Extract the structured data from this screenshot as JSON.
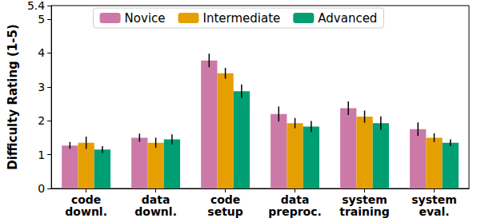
{
  "chart_data": {
    "type": "bar",
    "y_label": "Difficulty Rating (1-5)",
    "categories": [
      "code\ndownl.",
      "data\ndownl.",
      "code\nsetup",
      "data\npreproc.",
      "system\ntraining",
      "system\neval."
    ],
    "series": [
      {
        "name": "Novice",
        "color": "#cc79a7",
        "values": [
          1.27,
          1.5,
          3.78,
          2.2,
          2.37,
          1.75
        ],
        "errors": [
          0.1,
          0.12,
          0.2,
          0.22,
          0.2,
          0.2
        ]
      },
      {
        "name": "Intermediate",
        "color": "#e69f00",
        "values": [
          1.35,
          1.35,
          3.4,
          1.93,
          2.12,
          1.5
        ],
        "errors": [
          0.18,
          0.15,
          0.16,
          0.15,
          0.18,
          0.13
        ]
      },
      {
        "name": "Advanced",
        "color": "#009e73",
        "values": [
          1.15,
          1.45,
          2.87,
          1.83,
          1.93,
          1.35
        ],
        "errors": [
          0.1,
          0.15,
          0.2,
          0.16,
          0.2,
          0.1
        ]
      }
    ],
    "ylim": [
      0,
      5.4
    ],
    "yticks": [
      0,
      1,
      2,
      3,
      4,
      5
    ],
    "grid": false,
    "legend": "top"
  }
}
